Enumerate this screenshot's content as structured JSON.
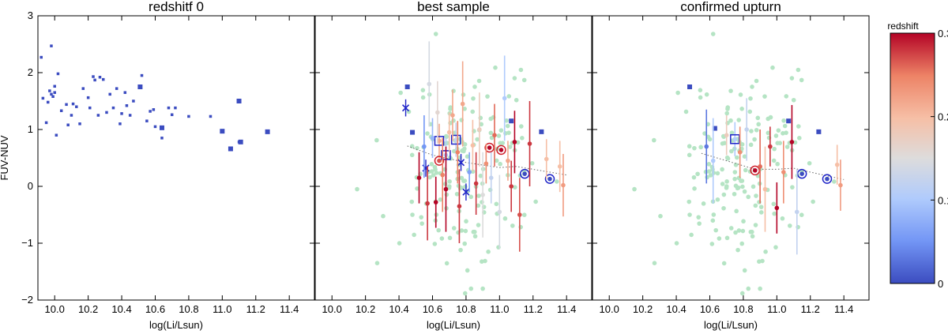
{
  "chart_data": [
    {
      "type": "scatter",
      "title": "redshitf 0",
      "xlabel": "log(Li/Lsun)",
      "ylabel": "FUV-NUV",
      "xlim": [
        9.9,
        11.55
      ],
      "ylim": [
        -2,
        3
      ],
      "xticks": [
        "10.0",
        "10.2",
        "10.4",
        "10.6",
        "10.8",
        "11.0",
        "11.2",
        "11.4"
      ],
      "yticks": [
        "−2",
        "−1",
        "0",
        "1",
        "2",
        "3"
      ],
      "series": [
        {
          "marker": "square",
          "color": "#3b4cc0",
          "points": [
            [
              9.92,
              2.27
            ],
            [
              9.93,
              1.55
            ],
            [
              9.95,
              1.12
            ],
            [
              9.96,
              1.48
            ],
            [
              9.97,
              1.68
            ],
            [
              9.98,
              2.47
            ],
            [
              9.98,
              1.62
            ],
            [
              9.99,
              1.58
            ],
            [
              10.0,
              1.65
            ],
            [
              10.0,
              1.76
            ],
            [
              10.01,
              0.9
            ],
            [
              10.02,
              1.98
            ],
            [
              10.04,
              1.33
            ],
            [
              10.07,
              1.44
            ],
            [
              10.08,
              1.08
            ],
            [
              10.1,
              1.25
            ],
            [
              10.11,
              1.45
            ],
            [
              10.13,
              1.4
            ],
            [
              10.15,
              1.1
            ],
            [
              10.17,
              1.72
            ],
            [
              10.2,
              1.56
            ],
            [
              10.21,
              1.38
            ],
            [
              10.23,
              1.93
            ],
            [
              10.24,
              1.87
            ],
            [
              10.26,
              1.25
            ],
            [
              10.27,
              1.92
            ],
            [
              10.29,
              1.88
            ],
            [
              10.31,
              1.3
            ],
            [
              10.33,
              1.62
            ],
            [
              10.35,
              1.38
            ],
            [
              10.37,
              1.72
            ],
            [
              10.39,
              1.1
            ],
            [
              10.4,
              1.28
            ],
            [
              10.42,
              1.65
            ],
            [
              10.43,
              1.42
            ],
            [
              10.45,
              1.25
            ],
            [
              10.47,
              1.5
            ],
            [
              10.52,
              1.95
            ],
            [
              10.55,
              1.15
            ],
            [
              10.57,
              1.32
            ],
            [
              10.59,
              1.35
            ],
            [
              10.6,
              1.05
            ],
            [
              10.64,
              0.85
            ],
            [
              10.68,
              1.38
            ],
            [
              10.7,
              1.26
            ],
            [
              10.72,
              1.38
            ],
            [
              10.8,
              1.23
            ],
            [
              10.93,
              1.23
            ],
            [
              11.1,
              0.78
            ]
          ]
        },
        {
          "marker": "square-large",
          "color": "#3b4cc0",
          "points": [
            [
              10.51,
              1.75
            ],
            [
              10.64,
              1.03
            ],
            [
              11.0,
              0.97
            ],
            [
              11.05,
              0.66
            ],
            [
              11.1,
              1.5
            ],
            [
              11.11,
              0.78
            ],
            [
              11.27,
              0.96
            ]
          ]
        }
      ]
    },
    {
      "type": "scatter",
      "title": "best sample",
      "xlabel": "log(Li/Lsun)",
      "xlim": [
        9.9,
        11.55
      ],
      "ylim": [
        -2,
        3
      ],
      "xticks": [
        "10.0",
        "10.2",
        "10.4",
        "10.6",
        "10.8",
        "11.0",
        "11.2",
        "11.4"
      ],
      "trend": [
        [
          10.45,
          0.71
        ],
        [
          10.6,
          0.55
        ],
        [
          10.8,
          0.42
        ],
        [
          11.0,
          0.33
        ],
        [
          11.1,
          0.35
        ],
        [
          11.2,
          0.3
        ],
        [
          11.4,
          0.2
        ]
      ],
      "errorbar_points": [
        {
          "x": 10.44,
          "y": 1.38,
          "marker": "x",
          "z": 0.0
        },
        {
          "x": 10.56,
          "y": 0.32,
          "marker": "x",
          "z": 0.0
        },
        {
          "x": 10.77,
          "y": 0.42,
          "marker": "x",
          "z": 0.0
        },
        {
          "x": 10.8,
          "y": -0.1,
          "marker": "x",
          "z": 0.0
        },
        {
          "x": 10.45,
          "y": 1.75,
          "marker": "square",
          "z": 0.0
        },
        {
          "x": 10.48,
          "y": 0.95,
          "marker": "square",
          "z": 0.0
        },
        {
          "x": 11.07,
          "y": 1.15,
          "marker": "square",
          "z": 0.0
        },
        {
          "x": 11.25,
          "y": 0.96,
          "marker": "square",
          "z": 0.0
        },
        {
          "x": 10.64,
          "y": 0.8,
          "marker": "big-square",
          "z": 0.22
        },
        {
          "x": 10.68,
          "y": 0.55,
          "marker": "big-square",
          "z": 0.1
        },
        {
          "x": 10.74,
          "y": 0.82,
          "marker": "big-square",
          "z": 0.12
        },
        {
          "x": 10.64,
          "y": 0.45,
          "marker": "circle",
          "z": 0.27
        },
        {
          "x": 10.94,
          "y": 0.68,
          "marker": "circle",
          "z": 0.3
        },
        {
          "x": 11.01,
          "y": 0.64,
          "marker": "circle",
          "z": 0.3
        },
        {
          "x": 11.15,
          "y": 0.22,
          "marker": "circle",
          "z": 0.0
        },
        {
          "x": 11.3,
          "y": 0.13,
          "marker": "circle",
          "z": 0.0
        },
        {
          "x": 10.52,
          "y": 0.15,
          "z": 0.3
        },
        {
          "x": 10.55,
          "y": 0.7,
          "z": 0.05
        },
        {
          "x": 10.57,
          "y": -0.3,
          "z": 0.28
        },
        {
          "x": 10.58,
          "y": 1.8,
          "z": 0.14
        },
        {
          "x": 10.6,
          "y": 0.85,
          "z": 0.08
        },
        {
          "x": 10.62,
          "y": -0.28,
          "z": 0.3
        },
        {
          "x": 10.63,
          "y": 1.3,
          "z": 0.16
        },
        {
          "x": 10.66,
          "y": 0.2,
          "z": 0.25
        },
        {
          "x": 10.68,
          "y": -0.05,
          "z": 0.3
        },
        {
          "x": 10.7,
          "y": 0.95,
          "z": 0.2
        },
        {
          "x": 10.72,
          "y": 1.25,
          "z": 0.22
        },
        {
          "x": 10.75,
          "y": 0.6,
          "z": 0.25
        },
        {
          "x": 10.76,
          "y": -0.35,
          "z": 0.28
        },
        {
          "x": 10.78,
          "y": 1.45,
          "z": 0.22
        },
        {
          "x": 10.82,
          "y": 0.25,
          "z": 0.06
        },
        {
          "x": 10.84,
          "y": 0.72,
          "z": 0.2
        },
        {
          "x": 10.86,
          "y": 0.05,
          "z": 0.28
        },
        {
          "x": 10.88,
          "y": 1.0,
          "z": 0.18
        },
        {
          "x": 10.9,
          "y": -0.15,
          "z": 0.15
        },
        {
          "x": 10.92,
          "y": 0.4,
          "z": 0.24
        },
        {
          "x": 10.95,
          "y": 0.15,
          "z": 0.12
        },
        {
          "x": 10.97,
          "y": 0.9,
          "z": 0.26
        },
        {
          "x": 11.0,
          "y": -0.45,
          "z": 0.14
        },
        {
          "x": 11.03,
          "y": 1.55,
          "z": 0.1
        },
        {
          "x": 11.05,
          "y": 0.45,
          "z": 0.22
        },
        {
          "x": 11.07,
          "y": 0.0,
          "z": 0.28
        },
        {
          "x": 11.09,
          "y": 0.78,
          "z": 0.3
        },
        {
          "x": 11.12,
          "y": -0.5,
          "z": 0.27
        },
        {
          "x": 11.18,
          "y": 0.75,
          "z": 0.28
        },
        {
          "x": 11.28,
          "y": 0.48,
          "z": 0.2
        },
        {
          "x": 11.36,
          "y": 0.35,
          "z": 0.2
        },
        {
          "x": 11.38,
          "y": 0.02,
          "z": 0.23
        }
      ],
      "background_points_color": "#b5e4c4"
    },
    {
      "type": "scatter",
      "title": "confirmed upturn",
      "xlabel": "log(Li/Lsun)",
      "xlim": [
        9.9,
        11.55
      ],
      "ylim": [
        -2,
        3
      ],
      "xticks": [
        "10.0",
        "10.2",
        "10.4",
        "10.6",
        "10.8",
        "11.0",
        "11.2",
        "11.4"
      ],
      "trend": [
        [
          10.55,
          0.58
        ],
        [
          10.7,
          0.45
        ],
        [
          10.87,
          0.3
        ],
        [
          11.0,
          0.3
        ],
        [
          11.1,
          0.32
        ],
        [
          11.2,
          0.25
        ],
        [
          11.4,
          0.12
        ]
      ],
      "errorbar_points": [
        {
          "x": 10.48,
          "y": 1.75,
          "marker": "square",
          "z": 0.0
        },
        {
          "x": 10.63,
          "y": 1.02,
          "marker": "square",
          "z": 0.0
        },
        {
          "x": 11.07,
          "y": 1.15,
          "marker": "square",
          "z": 0.0
        },
        {
          "x": 11.25,
          "y": 0.96,
          "marker": "square",
          "z": 0.0
        },
        {
          "x": 10.75,
          "y": 0.83,
          "marker": "big-square",
          "z": 0.1
        },
        {
          "x": 10.87,
          "y": 0.28,
          "marker": "circle",
          "z": 0.3
        },
        {
          "x": 11.15,
          "y": 0.22,
          "marker": "circle",
          "z": 0.0
        },
        {
          "x": 11.3,
          "y": 0.13,
          "marker": "circle",
          "z": 0.0
        },
        {
          "x": 10.58,
          "y": 0.7,
          "z": 0.03
        },
        {
          "x": 10.62,
          "y": 0.45,
          "z": 0.1
        },
        {
          "x": 10.7,
          "y": 0.9,
          "z": 0.18
        },
        {
          "x": 10.78,
          "y": 0.6,
          "z": 0.24
        },
        {
          "x": 10.82,
          "y": 1.0,
          "z": 0.12
        },
        {
          "x": 10.9,
          "y": 0.35,
          "z": 0.26
        },
        {
          "x": 10.93,
          "y": -0.05,
          "z": 0.2
        },
        {
          "x": 10.96,
          "y": 0.7,
          "z": 0.28
        },
        {
          "x": 11.0,
          "y": -0.38,
          "z": 0.3
        },
        {
          "x": 11.04,
          "y": 0.25,
          "z": 0.24
        },
        {
          "x": 11.09,
          "y": 0.78,
          "z": 0.3
        },
        {
          "x": 11.12,
          "y": -0.45,
          "z": 0.12
        },
        {
          "x": 11.36,
          "y": 0.38,
          "z": 0.2
        },
        {
          "x": 11.38,
          "y": 0.02,
          "z": 0.23
        }
      ],
      "background_points_color": "#b5e4c4"
    }
  ],
  "colorbar": {
    "label": "redshift",
    "ticks": [
      "0",
      "0.1",
      "0.2",
      "0.3"
    ],
    "range": [
      0,
      0.3
    ],
    "colors": [
      "#3b4cc0",
      "#7396f5",
      "#b0cbfc",
      "#dddcdc",
      "#f6bfa6",
      "#ed8366",
      "#b40426"
    ]
  }
}
